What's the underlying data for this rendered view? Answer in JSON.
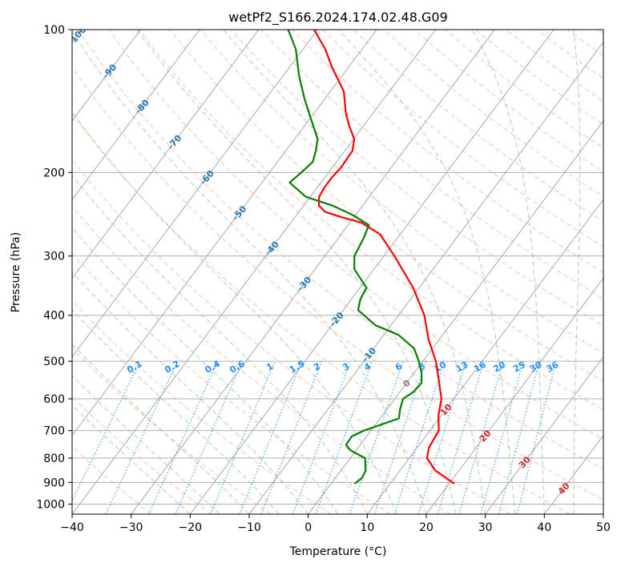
{
  "chart_data": {
    "type": "line",
    "diagram": "skew-t log-p",
    "title": "wetPf2_S166.2024.174.02.48.G09",
    "xlabel": "Temperature (°C)",
    "ylabel": "Pressure (hPa)",
    "xlim": [
      -40,
      50
    ],
    "ylim": [
      1050,
      100
    ],
    "y_scale": "log",
    "x_ticks": [
      "−40",
      "−30",
      "−20",
      "−10",
      "0",
      "10",
      "20",
      "30",
      "40",
      "50"
    ],
    "x_tick_values": [
      -40,
      -30,
      -20,
      -10,
      0,
      10,
      20,
      30,
      40,
      50
    ],
    "y_ticks": [
      "100",
      "200",
      "300",
      "400",
      "500",
      "600",
      "700",
      "800",
      "900",
      "1000"
    ],
    "y_tick_values": [
      100,
      200,
      300,
      400,
      500,
      600,
      700,
      800,
      900,
      1000
    ],
    "grid": true,
    "colors": {
      "temperature": "#ff0000",
      "dewpoint": "#008000",
      "isotherm": "#999999",
      "dry_adiabat": "#ffa07a",
      "moist_adiabat": "#8fbc8f",
      "mixing_ratio": "#1e90ff",
      "isotherm_label": "#1f77b4",
      "warm_label": "#d62728",
      "zero_label": "#808080"
    },
    "series": [
      {
        "key": "temperature",
        "points": [
          [
            906,
            20.9
          ],
          [
            850,
            16
          ],
          [
            800,
            13
          ],
          [
            760,
            12
          ],
          [
            700,
            11.5
          ],
          [
            650,
            9.5
          ],
          [
            600,
            7.9
          ],
          [
            550,
            5.2
          ],
          [
            500,
            2.2
          ],
          [
            450,
            -1.8
          ],
          [
            400,
            -5.6
          ],
          [
            350,
            -11
          ],
          [
            300,
            -18.2
          ],
          [
            270,
            -23.4
          ],
          [
            255,
            -28.1
          ],
          [
            248,
            -32.4
          ],
          [
            242,
            -35.6
          ],
          [
            235,
            -37.4
          ],
          [
            225,
            -38.5
          ],
          [
            215,
            -38.8
          ],
          [
            205,
            -38.8
          ],
          [
            195,
            -38.5
          ],
          [
            180,
            -38.7
          ],
          [
            170,
            -39.9
          ],
          [
            160,
            -42.3
          ],
          [
            150,
            -44.6
          ],
          [
            135,
            -47.7
          ],
          [
            120,
            -52.8
          ],
          [
            110,
            -56.2
          ],
          [
            100,
            -60.6
          ]
        ]
      },
      {
        "key": "dewpoint",
        "points": [
          [
            906,
            4
          ],
          [
            880,
            4.5
          ],
          [
            850,
            4.2
          ],
          [
            800,
            2.5
          ],
          [
            770,
            -1
          ],
          [
            750,
            -2.4
          ],
          [
            720,
            -2.5
          ],
          [
            700,
            -1.2
          ],
          [
            660,
            3.2
          ],
          [
            630,
            2.2
          ],
          [
            600,
            1.4
          ],
          [
            580,
            2.3
          ],
          [
            555,
            2.5
          ],
          [
            530,
            1.3
          ],
          [
            500,
            -0.7
          ],
          [
            470,
            -3.1
          ],
          [
            440,
            -7.5
          ],
          [
            420,
            -12.6
          ],
          [
            390,
            -17.5
          ],
          [
            370,
            -18.5
          ],
          [
            350,
            -18.9
          ],
          [
            320,
            -23.3
          ],
          [
            300,
            -25
          ],
          [
            275,
            -25.7
          ],
          [
            258,
            -26.5
          ],
          [
            245,
            -30.8
          ],
          [
            235,
            -35.1
          ],
          [
            225,
            -40.8
          ],
          [
            210,
            -45.3
          ],
          [
            200,
            -44.6
          ],
          [
            190,
            -44
          ],
          [
            180,
            -44.9
          ],
          [
            170,
            -46.1
          ],
          [
            155,
            -49.6
          ],
          [
            140,
            -53.4
          ],
          [
            125,
            -57.3
          ],
          [
            110,
            -61.2
          ],
          [
            100,
            -65
          ]
        ]
      }
    ],
    "isotherm_labels": [
      "-100",
      "-90",
      "-80",
      "-70",
      "-60",
      "-50",
      "-40",
      "-30",
      "-20",
      "-10",
      "0",
      "10",
      "20",
      "30",
      "40"
    ],
    "mixing_ratio_labels": [
      "0.1",
      "0.2",
      "0.4",
      "0.6",
      "1",
      "1.5",
      "2",
      "3",
      "4",
      "6",
      "8",
      "10",
      "13",
      "16",
      "20",
      "25",
      "30",
      "36"
    ]
  }
}
